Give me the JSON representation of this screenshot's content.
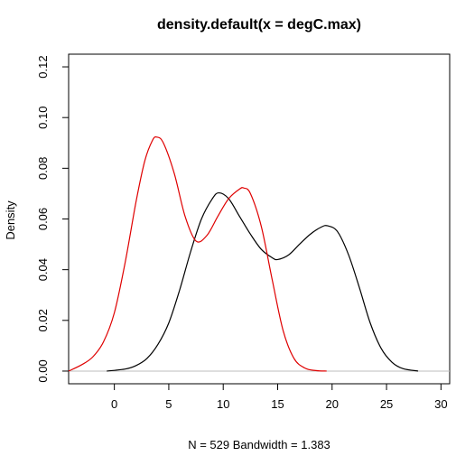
{
  "chart_data": {
    "type": "line",
    "title": "density.default(x = degC.max)",
    "xlabel": "N = 529   Bandwidth = 1.383",
    "ylabel": "Density",
    "xlim": [
      -4.2,
      30.8
    ],
    "ylim": [
      -0.005,
      0.125
    ],
    "xticks": [
      0,
      5,
      10,
      15,
      20,
      25,
      30
    ],
    "yticks": [
      0.0,
      0.02,
      0.04,
      0.06,
      0.08,
      0.1,
      0.12
    ],
    "xtick_labels": [
      "0",
      "5",
      "10",
      "15",
      "20",
      "25",
      "30"
    ],
    "ytick_labels": [
      "0.00",
      "0.02",
      "0.04",
      "0.06",
      "0.08",
      "0.10",
      "0.12"
    ],
    "baseline": {
      "y": 0,
      "color": "#bebebe"
    },
    "grid": false,
    "series": [
      {
        "color": "#000000",
        "x": [
          -0.7,
          1,
          2,
          3,
          4,
          5,
          6,
          7,
          8,
          9,
          9.6,
          10.5,
          11.5,
          12.5,
          13.5,
          14.5,
          15,
          16,
          17,
          18,
          19,
          19.6,
          20.5,
          21.5,
          22.5,
          23.5,
          24.5,
          25.5,
          26.5,
          27.9
        ],
        "y": [
          0.0,
          0.0008,
          0.0022,
          0.005,
          0.0105,
          0.019,
          0.032,
          0.047,
          0.06,
          0.068,
          0.0703,
          0.068,
          0.061,
          0.054,
          0.048,
          0.0447,
          0.044,
          0.0458,
          0.05,
          0.054,
          0.0568,
          0.0573,
          0.055,
          0.046,
          0.033,
          0.019,
          0.009,
          0.0035,
          0.001,
          0.0
        ]
      },
      {
        "color": "#df0000",
        "x": [
          -4.2,
          -3,
          -2,
          -1,
          0,
          1,
          2,
          2.8,
          3.5,
          3.9,
          4.5,
          5.5,
          6.5,
          7.5,
          8.5,
          9.5,
          10.5,
          11.5,
          11.9,
          12.5,
          13.5,
          14.5,
          15.5,
          16.5,
          17.5,
          18.5,
          19.5
        ],
        "y": [
          0.0,
          0.0025,
          0.0055,
          0.0115,
          0.023,
          0.043,
          0.067,
          0.083,
          0.091,
          0.0923,
          0.09,
          0.078,
          0.061,
          0.0513,
          0.0535,
          0.061,
          0.068,
          0.0718,
          0.0722,
          0.07,
          0.057,
          0.036,
          0.016,
          0.005,
          0.0012,
          0.0002,
          0.0
        ]
      }
    ]
  }
}
